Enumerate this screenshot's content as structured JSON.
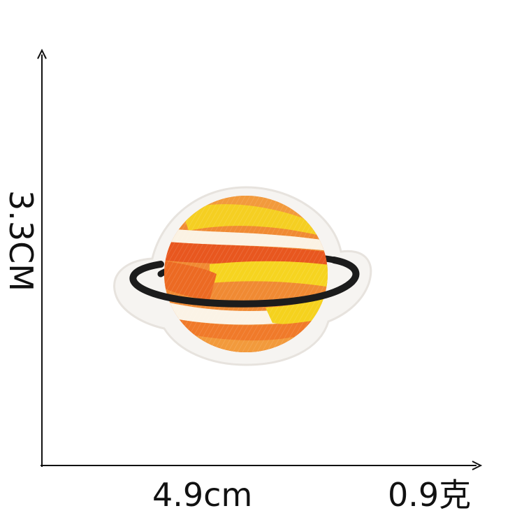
{
  "dimensions": {
    "height_label": "3.3CM",
    "width_label": "4.9cm",
    "weight_label": "0.9克"
  },
  "colors": {
    "background": "#ffffff",
    "axis": "#111111",
    "patch_border": "#f4f2ef",
    "ring": "#1c1c1c",
    "orange": "#f07a2a",
    "orange_deep": "#e8571f",
    "yellow": "#f5d21e",
    "cream": "#fbf3e6"
  },
  "subject": {
    "icon": "planet-patch-icon"
  }
}
